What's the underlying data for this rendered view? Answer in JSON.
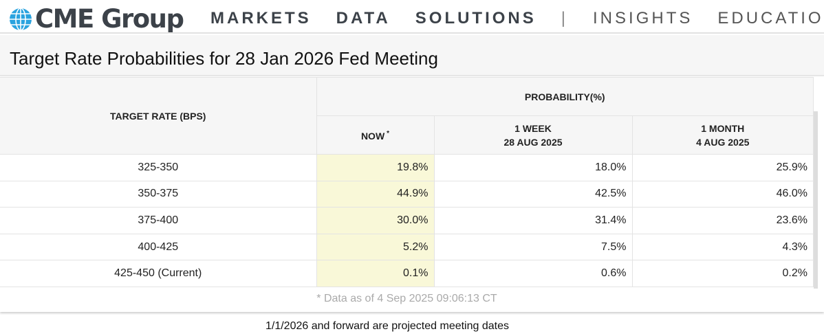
{
  "header": {
    "brand": "CME Group",
    "nav": [
      "MARKETS",
      "DATA",
      "SOLUTIONS",
      "|",
      "INSIGHTS",
      "EDUCATION"
    ]
  },
  "title": "Target Rate Probabilities for 28 Jan 2026 Fed Meeting",
  "table": {
    "rate_header": "TARGET RATE (BPS)",
    "prob_header": "PROBABILITY(%)",
    "cols": [
      {
        "label": "NOW",
        "sup": "*"
      },
      {
        "label": "1 WEEK",
        "date": "28 AUG 2025"
      },
      {
        "label": "1 MONTH",
        "date": "4 AUG 2025"
      }
    ],
    "rows": [
      {
        "rate": "325-350",
        "now": "19.8%",
        "week": "18.0%",
        "month": "25.9%"
      },
      {
        "rate": "350-375",
        "now": "44.9%",
        "week": "42.5%",
        "month": "46.0%"
      },
      {
        "rate": "375-400",
        "now": "30.0%",
        "week": "31.4%",
        "month": "23.6%"
      },
      {
        "rate": "400-425",
        "now": "5.2%",
        "week": "7.5%",
        "month": "4.3%"
      },
      {
        "rate": "425-450 (Current)",
        "now": "0.1%",
        "week": "0.6%",
        "month": "0.2%"
      }
    ]
  },
  "data_note": "* Data as of 4 Sep 2025 09:06:13 CT",
  "footnote": "1/1/2026 and forward are projected meeting dates",
  "colors": {
    "now_highlight": "#f9f8d8",
    "logo_blue": "#2aa3df",
    "text": "#3c4249"
  }
}
